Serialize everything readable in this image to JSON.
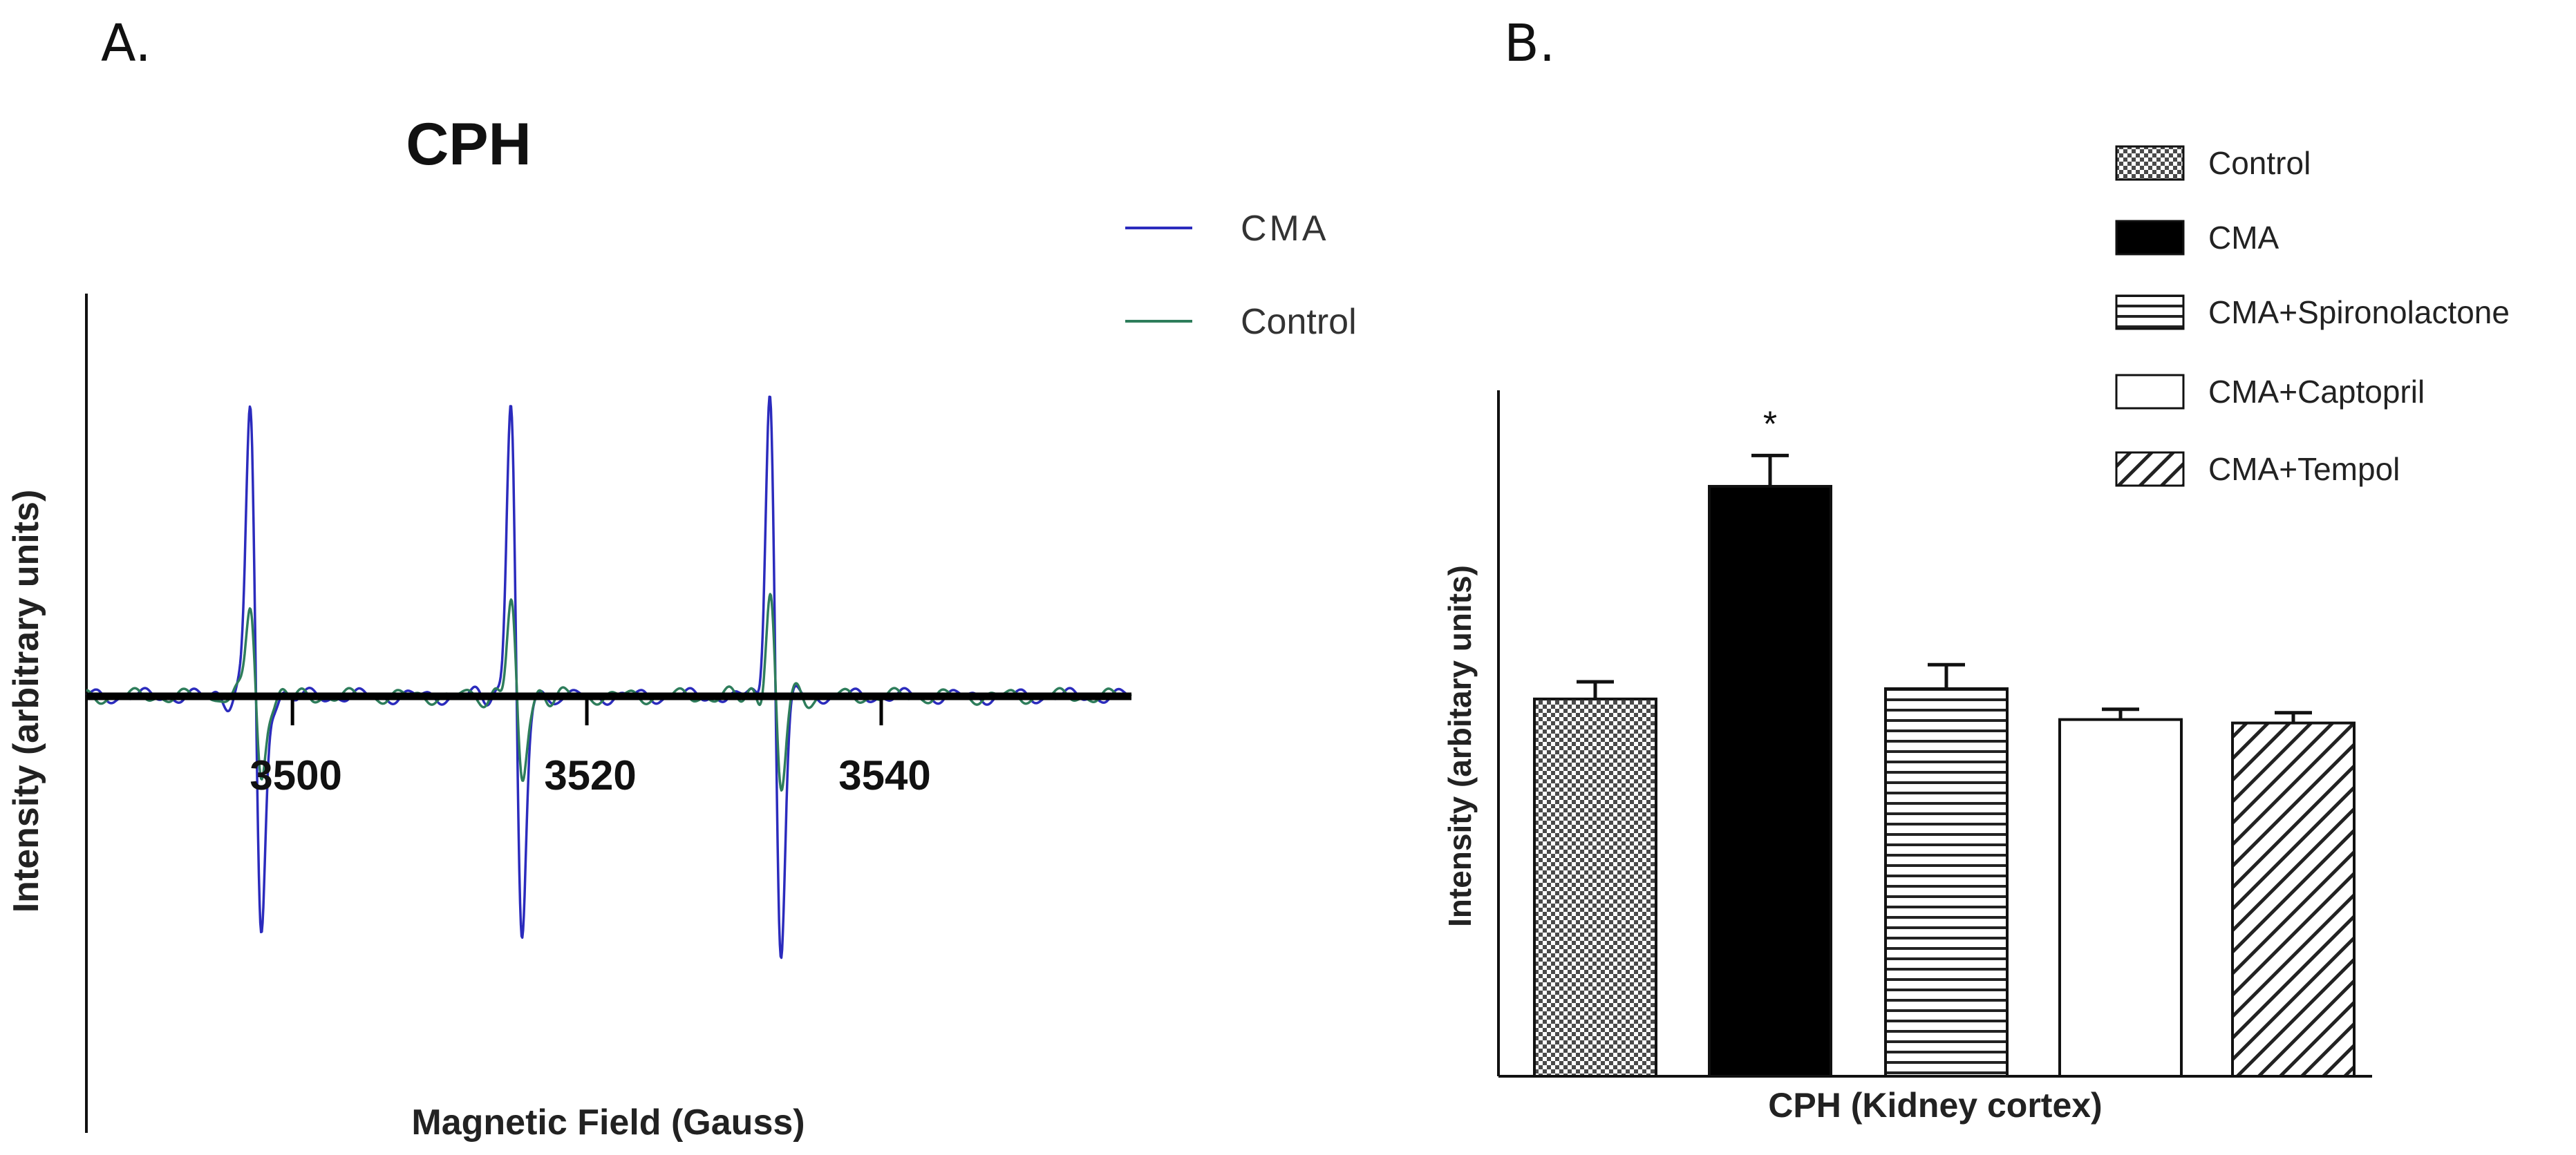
{
  "panels": {
    "a_label": "A.",
    "b_label": "B."
  },
  "chart_data": [
    {
      "type": "line",
      "title": "CPH",
      "xlabel": "Magnetic Field (Gauss)",
      "ylabel": "Intensity (arbitrary units)",
      "xlim": [
        3486,
        3557
      ],
      "ylim": [
        -1.05,
        1.2
      ],
      "tick_labels": [
        "3500",
        "3520",
        "3540"
      ],
      "ticks": [
        3500,
        3520,
        3540
      ],
      "legend": [
        "CMA",
        "Control"
      ],
      "legend_position": "top-right",
      "series": [
        {
          "name": "CMA",
          "color": "#2b2bbd",
          "line_centers": [
            3497.5,
            3515.2,
            3532.8
          ],
          "peak_amplitude": 1.15,
          "trough_amplitude": -0.98
        },
        {
          "name": "Control",
          "color": "#2e7d5b",
          "line_centers": [
            3497.5,
            3515.2,
            3532.8
          ],
          "peak_amplitude": 0.37,
          "trough_amplitude": -0.35
        }
      ]
    },
    {
      "type": "bar",
      "title": "",
      "xlabel": "CPH (Kidney cortex)",
      "ylabel": "Intensity (arbitary units)",
      "ylim": [
        0,
        100
      ],
      "categories": [
        "Control",
        "CMA",
        "CMA+Spironolactone",
        "CMA+Captopril",
        "CMA+Tempol"
      ],
      "values": [
        55,
        86,
        56.5,
        52,
        51.5
      ],
      "errors": [
        2.5,
        4.5,
        3.5,
        1.5,
        1.5
      ],
      "patterns": [
        "checker",
        "solid",
        "hlines",
        "empty",
        "diag"
      ],
      "significance": [
        "",
        "*",
        "",
        "",
        ""
      ],
      "legend": [
        "Control",
        "CMA",
        "CMA+Spironolactone",
        "CMA+Captopril",
        "CMA+Tempol"
      ],
      "legend_position": "top-right"
    }
  ]
}
